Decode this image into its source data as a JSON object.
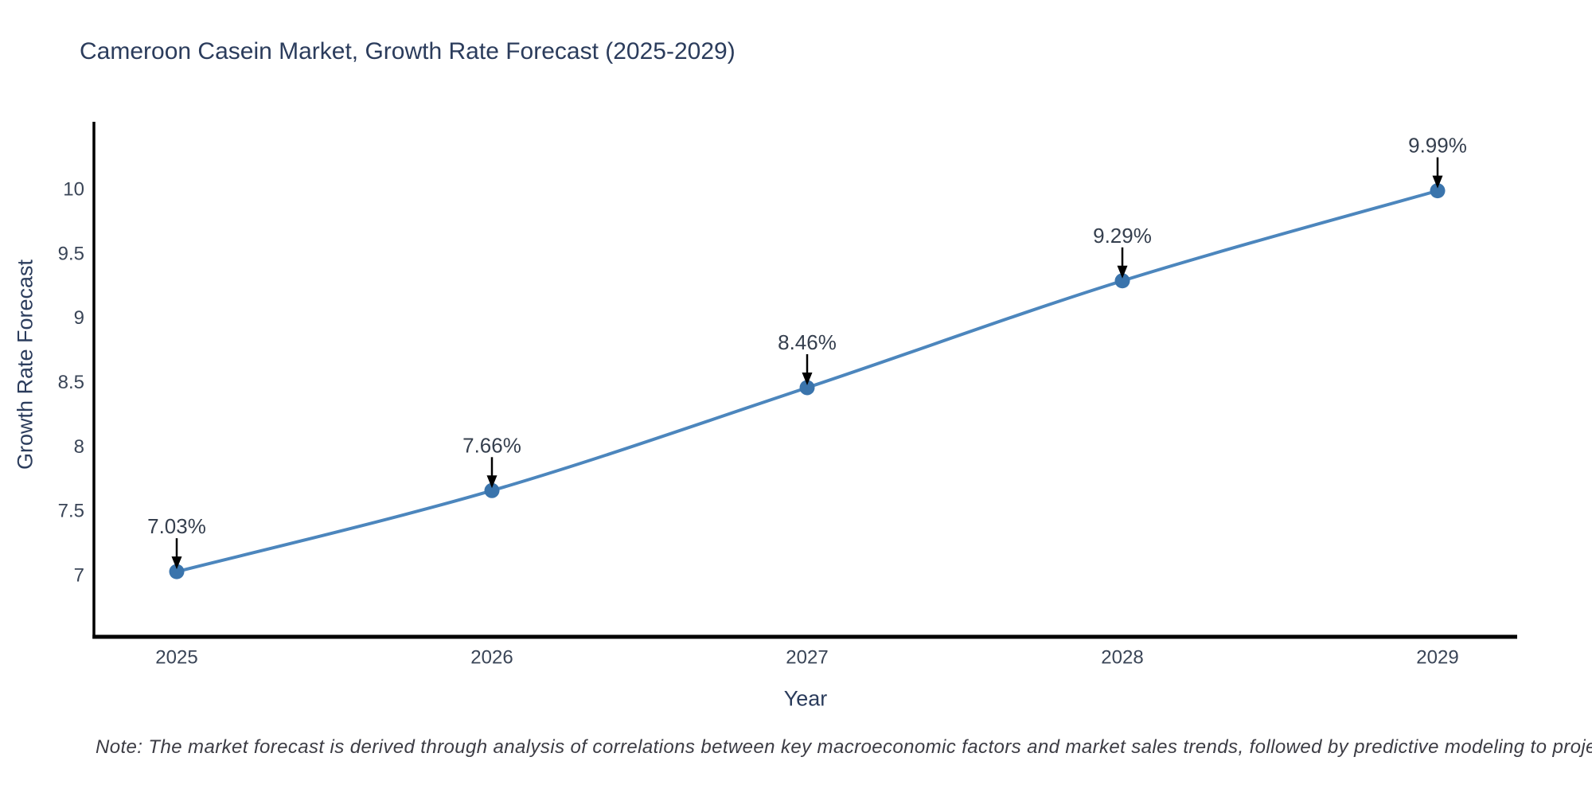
{
  "title": "Cameroon Casein Market, Growth Rate Forecast (2025-2029)",
  "note": "Note: The market forecast is derived through analysis of correlations between key macroeconomic factors and market sales trends, followed by predictive modeling to project future sales",
  "chart_data": {
    "type": "line",
    "title": "Cameroon Casein Market, Growth Rate Forecast (2025-2029)",
    "xlabel": "Year",
    "ylabel": "Growth Rate Forecast",
    "x": [
      2025,
      2026,
      2027,
      2028,
      2029
    ],
    "y": [
      7.03,
      7.66,
      8.46,
      9.29,
      9.99
    ],
    "point_labels": [
      "7.03%",
      "7.66%",
      "8.46%",
      "9.29%",
      "9.99%"
    ],
    "xticks": [
      "2025",
      "2026",
      "2027",
      "2028",
      "2029"
    ],
    "yticks": [
      7,
      7.5,
      8,
      8.5,
      9,
      9.5,
      10
    ],
    "ytick_labels": [
      "7",
      "7.5",
      "8",
      "8.5",
      "9",
      "9.5",
      "10"
    ],
    "ylim": [
      6.52,
      10.53
    ],
    "grid": false,
    "legend": false,
    "line_shape": "spline",
    "markers": true
  },
  "colors": {
    "line": "#4c86bd",
    "marker": "#3a74ac",
    "axis_line": "#000000",
    "tick_text": "#3a4557",
    "annotation_text": "#353f4e",
    "annotation_arrow": "#000000",
    "title_text": "#2b3c5c"
  }
}
